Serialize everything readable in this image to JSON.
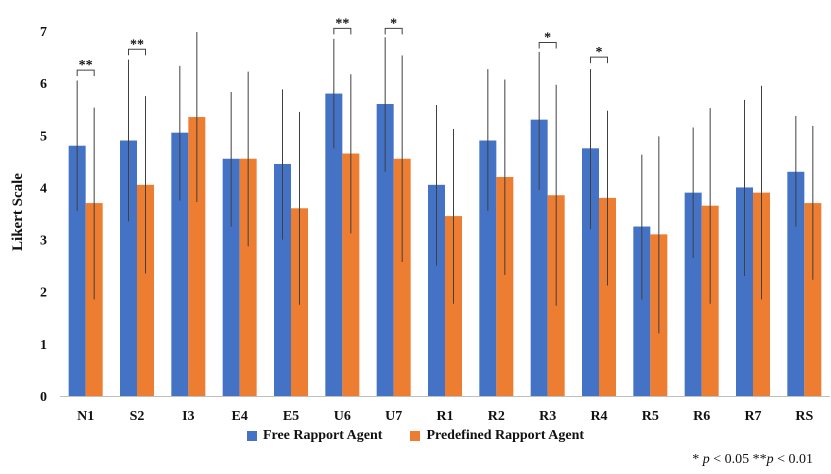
{
  "chart_data": {
    "type": "bar",
    "ylabel": "Likert Scale",
    "ylim": [
      0,
      7
    ],
    "yticks": [
      0,
      1,
      2,
      3,
      4,
      5,
      6,
      7
    ],
    "categories": [
      "N1",
      "S2",
      "I3",
      "E4",
      "E5",
      "U6",
      "U7",
      "R1",
      "R2",
      "R3",
      "R4",
      "R5",
      "R6",
      "R7",
      "RS"
    ],
    "series": [
      {
        "name": "Free Rapport Agent",
        "color": "#4472C4",
        "values": [
          4.8,
          4.9,
          5.05,
          4.55,
          4.45,
          5.8,
          5.6,
          4.05,
          4.9,
          5.3,
          4.75,
          3.25,
          3.9,
          4.0,
          4.3
        ],
        "error_low": [
          3.55,
          3.35,
          3.75,
          3.25,
          3.0,
          4.75,
          4.3,
          2.5,
          3.55,
          3.95,
          3.2,
          1.85,
          2.65,
          2.3,
          3.25
        ],
        "error_high": [
          6.05,
          6.45,
          6.33,
          5.83,
          5.88,
          6.85,
          6.88,
          5.58,
          6.27,
          6.6,
          6.27,
          4.63,
          5.15,
          5.68,
          5.37
        ]
      },
      {
        "name": "Predefined Rapport Agent",
        "color": "#ED7D31",
        "values": [
          3.7,
          4.05,
          5.35,
          4.55,
          3.6,
          4.65,
          4.55,
          3.45,
          4.2,
          3.85,
          3.8,
          3.1,
          3.65,
          3.9,
          3.7
        ],
        "error_low": [
          1.85,
          2.35,
          3.72,
          2.87,
          1.75,
          3.12,
          2.57,
          1.77,
          2.32,
          1.73,
          2.12,
          1.2,
          1.77,
          1.85,
          2.23
        ],
        "error_high": [
          5.53,
          5.75,
          6.98,
          6.22,
          5.45,
          6.17,
          6.53,
          5.12,
          6.07,
          5.97,
          5.47,
          4.98,
          5.52,
          5.95,
          5.18
        ]
      }
    ],
    "significance": [
      {
        "category": "N1",
        "label": "**",
        "level": 6.25
      },
      {
        "category": "S2",
        "label": "**",
        "level": 6.65
      },
      {
        "category": "U6",
        "label": "**",
        "level": 7.05
      },
      {
        "category": "U7",
        "label": "*",
        "level": 7.05
      },
      {
        "category": "R3",
        "label": "*",
        "level": 6.78
      },
      {
        "category": "R4",
        "label": "*",
        "level": 6.5
      }
    ],
    "footnote": {
      "one_star": "* ",
      "p1": "p",
      "one_star_rule": " < 0.05 **",
      "p2": "p",
      "two_star_rule": " < 0.01"
    }
  }
}
